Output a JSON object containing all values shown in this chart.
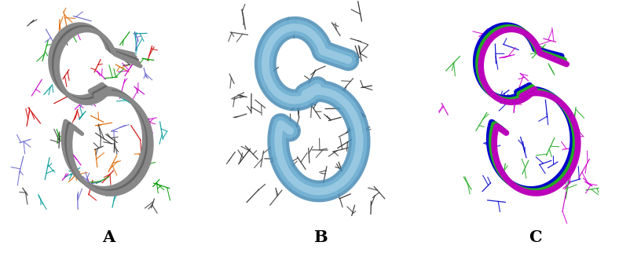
{
  "panels": [
    "A",
    "B",
    "C"
  ],
  "panel_labels": {
    "A": "A",
    "B": "B",
    "C": "C"
  },
  "background_color": "#ffffff",
  "label_fontsize": 15,
  "label_fontweight": "bold",
  "figsize": [
    8.16,
    3.22
  ],
  "dpi": 100,
  "panel_A": {
    "backbone_color": "#888888",
    "backbone_lw": 4.0,
    "side_chain_colors_bg": [
      "#cc0000",
      "#ee5500",
      "#cc00cc",
      "#009900",
      "#009999",
      "#6666cc",
      "#333333"
    ],
    "side_chain_colors_fg": [
      "#cc0000",
      "#ee5500",
      "#cc00cc",
      "#009900",
      "#009999",
      "#6666cc",
      "#444444"
    ]
  },
  "panel_B": {
    "backbone_color_outer": "#5b9ec9",
    "backbone_color_inner": "#a0cce0",
    "backbone_lw_outer": 18,
    "backbone_lw_inner": 12,
    "side_chain_color": "#333333"
  },
  "panel_C": {
    "backbone_colors": [
      "#0000cc",
      "#22aa22",
      "#cc00cc"
    ],
    "backbone_lw": 5,
    "side_chain_colors": [
      "#0000cc",
      "#22aa22",
      "#cc00cc"
    ]
  }
}
